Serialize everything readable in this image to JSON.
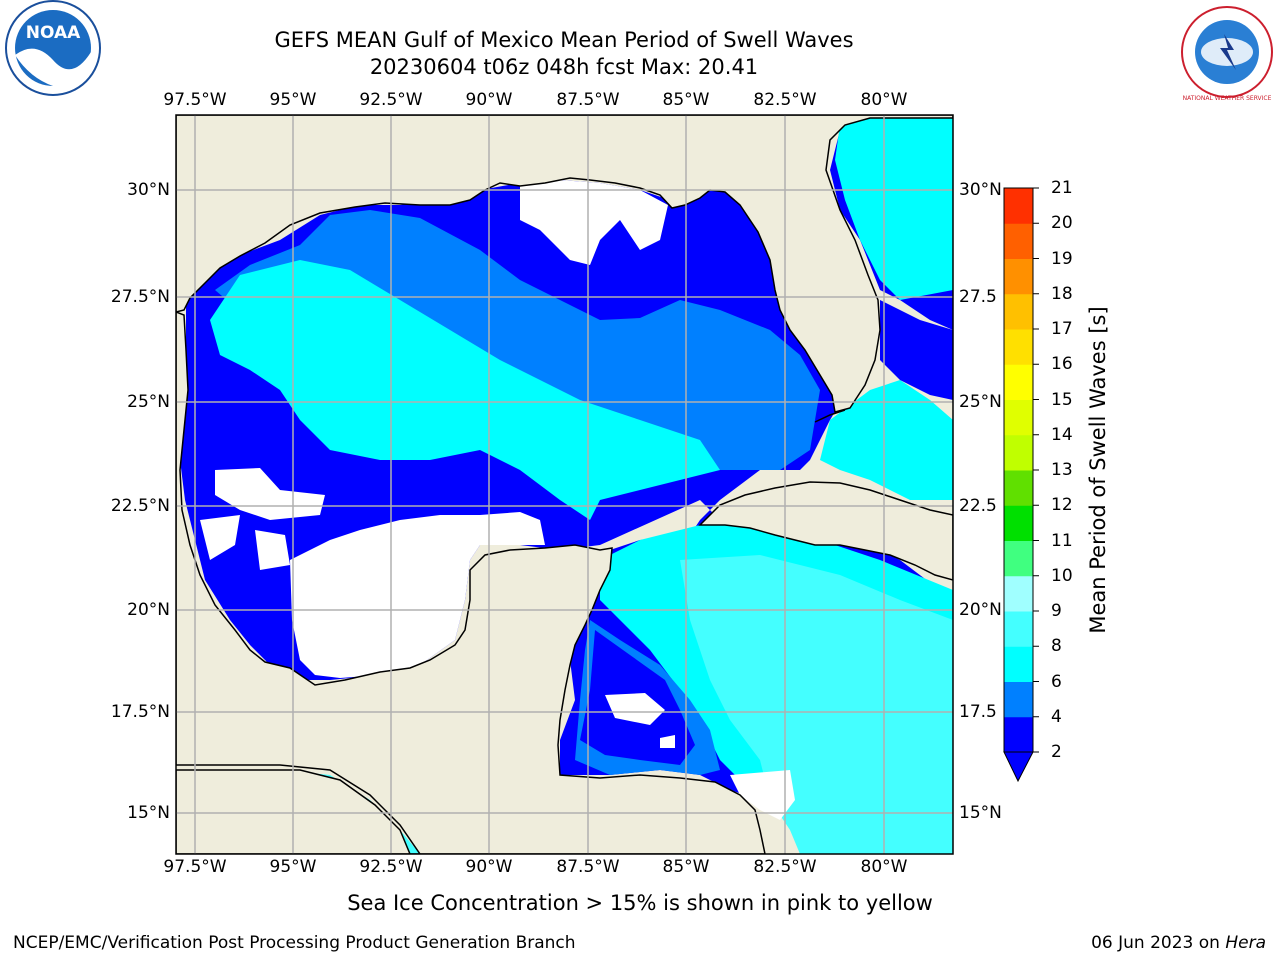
{
  "header": {
    "title_line1": "GEFS MEAN Gulf of Mexico Mean Period of Swell Waves",
    "title_line2": "20230604 t06z 048h fcst   Max: 20.41"
  },
  "logos": {
    "left": "NOAA",
    "right": "NATIONAL WEATHER SERVICE"
  },
  "map": {
    "lon_ticks": [
      "97.5°W",
      "95°W",
      "92.5°W",
      "90°W",
      "87.5°W",
      "85°W",
      "82.5°W",
      "80°W"
    ],
    "lat_ticks_left": [
      "30°N",
      "27.5°N",
      "25°N",
      "22.5°N",
      "20°N",
      "17.5°N",
      "15°N"
    ],
    "lat_ticks_right": [
      "30°N",
      "27.5",
      "25°N",
      "22.5",
      "20°N",
      "17.5",
      "15°N"
    ],
    "colors": {
      "land": "#efeddc",
      "no_data": "#ffffff",
      "grid": "#b0b0b0",
      "coast": "#000000"
    }
  },
  "colorbar": {
    "label": "Mean Period of Swell Waves [s]",
    "ticks": [
      "2",
      "4",
      "6",
      "8",
      "9",
      "10",
      "11",
      "12",
      "13",
      "14",
      "15",
      "16",
      "17",
      "18",
      "19",
      "20",
      "21"
    ],
    "colors": [
      "#0000ff",
      "#0080ff",
      "#00ffff",
      "#44ffff",
      "#a0ffff",
      "#40ff80",
      "#00e000",
      "#60e000",
      "#c0ff00",
      "#e0ff00",
      "#ffff00",
      "#ffe000",
      "#ffc000",
      "#ff9000",
      "#ff6000",
      "#ff3000",
      "#ff0000"
    ]
  },
  "subtitle": "Sea Ice Concentration > 15% is shown in pink to yellow",
  "footer": {
    "left": "NCEP/EMC/Verification Post Processing Product Generation Branch",
    "right_prefix": "06 Jun 2023 on ",
    "right_italic": "Hera"
  }
}
